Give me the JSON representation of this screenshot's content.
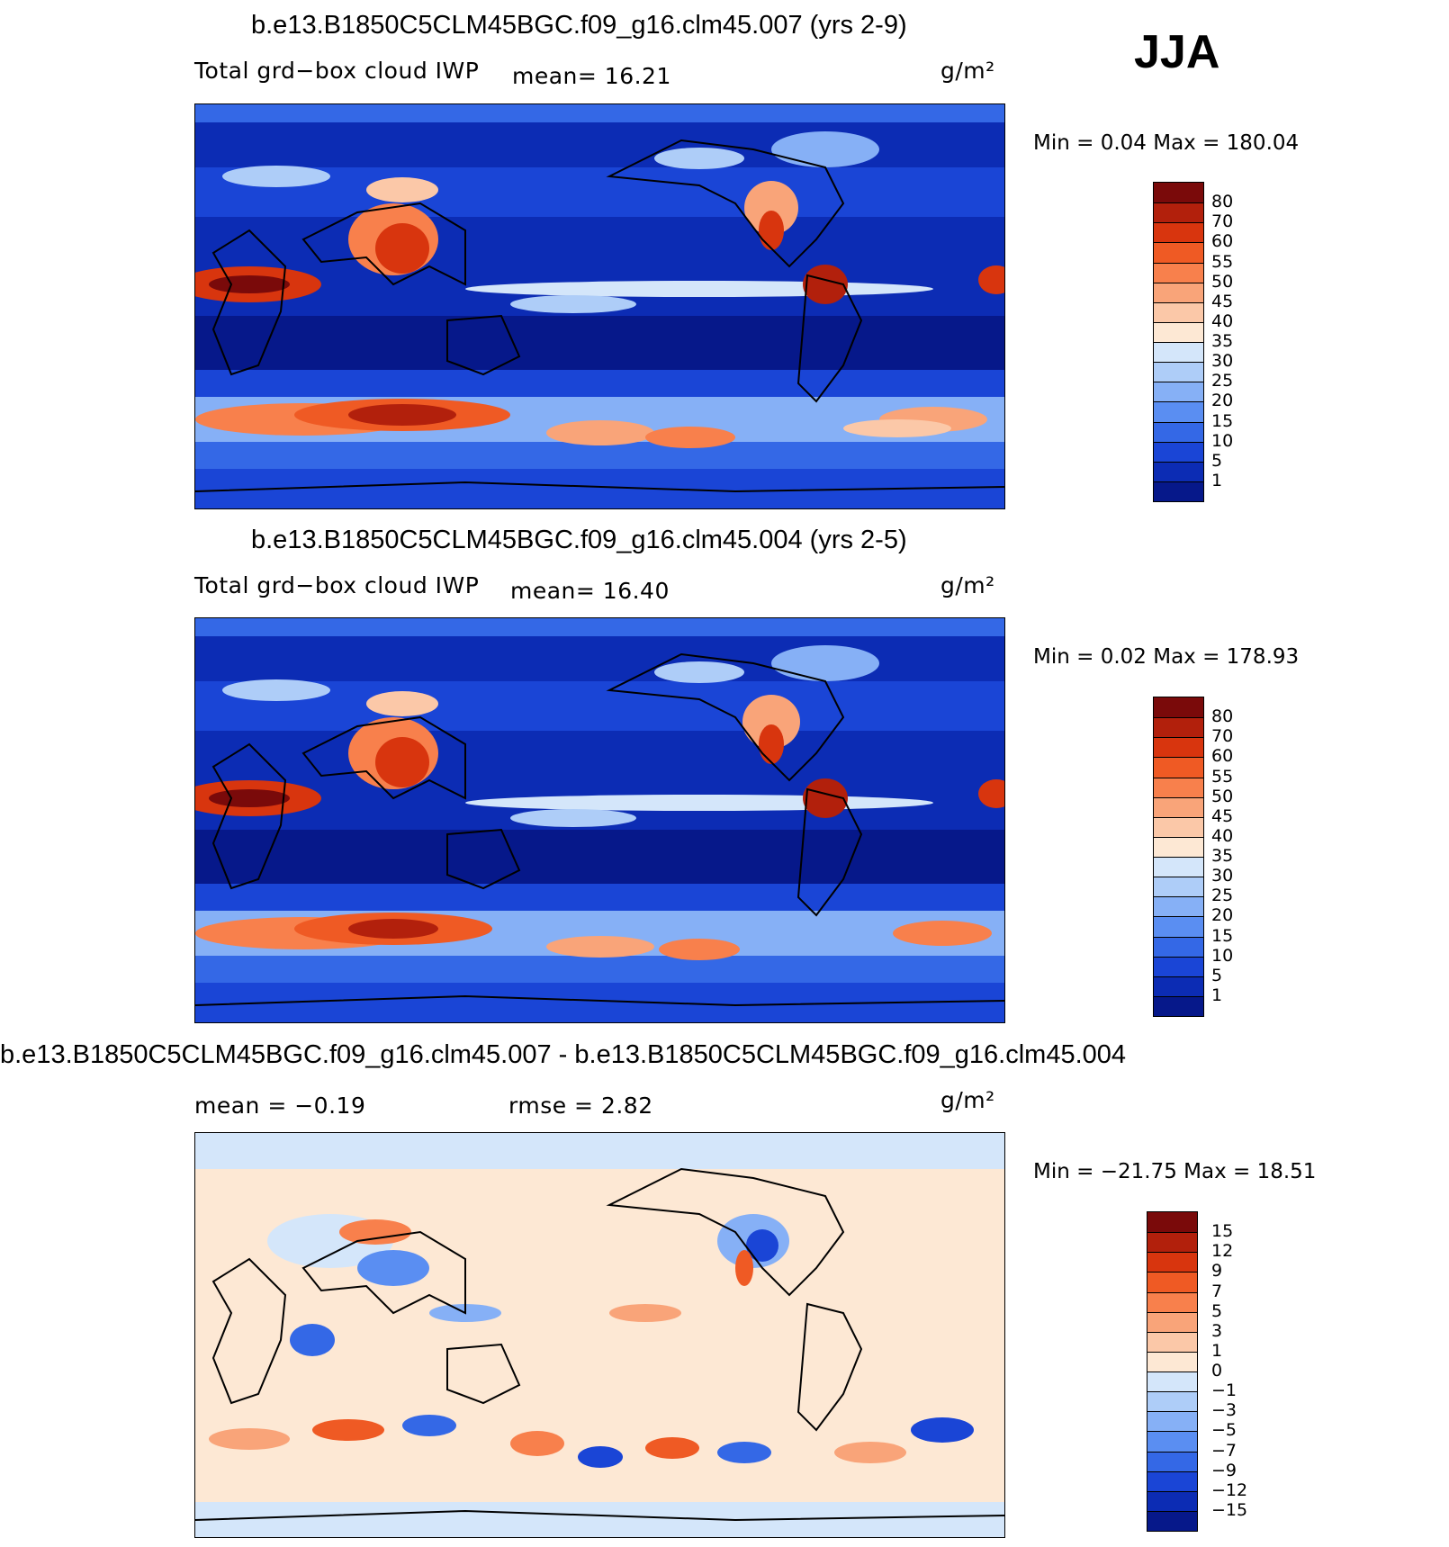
{
  "season": "JJA",
  "panels": [
    {
      "title": "b.e13.B1850C5CLM45BGC.f09_g16.clm45.007 (yrs 2-9)",
      "subtitle_left": "Total grd−box cloud IWP",
      "stat1": "mean=   16.21",
      "stat2": "",
      "units": "g/m²",
      "minmax": "Min  =     0.04  Max  =  180.04",
      "kind": "abs"
    },
    {
      "title": "b.e13.B1850C5CLM45BGC.f09_g16.clm45.004 (yrs 2-5)",
      "subtitle_left": "Total grd−box cloud IWP",
      "stat1": "mean=   16.40",
      "stat2": "",
      "units": "g/m²",
      "minmax": "Min  =     0.02  Max  =  178.93",
      "kind": "abs"
    },
    {
      "title": "b.e13.B1850C5CLM45BGC.f09_g16.clm45.007 - b.e13.B1850C5CLM45BGC.f09_g16.clm45.004",
      "subtitle_left": "mean  =    −0.19",
      "stat1": "",
      "stat2": "rmse  =     2.82",
      "units": "g/m²",
      "minmax": "Min  = −21.75  Max  =    18.51",
      "kind": "diff"
    }
  ],
  "colorbars": {
    "abs": {
      "labels": [
        "80",
        "70",
        "60",
        "55",
        "50",
        "45",
        "40",
        "35",
        "30",
        "25",
        "20",
        "15",
        "10",
        "5",
        "1"
      ],
      "colors": [
        "#7a0a0a",
        "#b2200c",
        "#d8350e",
        "#ef5a24",
        "#f8804c",
        "#f9a479",
        "#fbc8a8",
        "#fde8d4",
        "#d4e6fa",
        "#aecdf8",
        "#86b0f6",
        "#5a8ef2",
        "#3468e6",
        "#1a45d6",
        "#0c2cb4",
        "#06188a"
      ]
    },
    "diff": {
      "labels": [
        "15",
        "12",
        "9",
        "7",
        "5",
        "3",
        "1",
        "0",
        "−1",
        "−3",
        "−5",
        "−7",
        "−9",
        "−12",
        "−15"
      ],
      "colors": [
        "#7a0a0a",
        "#b2200c",
        "#d8350e",
        "#ef5a24",
        "#f8804c",
        "#f9a479",
        "#fbc8a8",
        "#fde8d4",
        "#d4e6fa",
        "#aecdf8",
        "#86b0f6",
        "#5a8ef2",
        "#3468e6",
        "#1a45d6",
        "#0c2cb4",
        "#06188a"
      ]
    }
  },
  "chart_data": [
    {
      "type": "heatmap",
      "title": "b.e13.B1850C5CLM45BGC.f09_g16.clm45.007 (yrs 2-9)",
      "variable": "Total grd−box cloud IWP",
      "units": "g/m2",
      "mean": 16.21,
      "min": 0.04,
      "max": 180.04,
      "levels": [
        1,
        5,
        10,
        15,
        20,
        25,
        30,
        35,
        40,
        45,
        50,
        55,
        60,
        70,
        80
      ]
    },
    {
      "type": "heatmap",
      "title": "b.e13.B1850C5CLM45BGC.f09_g16.clm45.004 (yrs 2-5)",
      "variable": "Total grd−box cloud IWP",
      "units": "g/m2",
      "mean": 16.4,
      "min": 0.02,
      "max": 178.93,
      "levels": [
        1,
        5,
        10,
        15,
        20,
        25,
        30,
        35,
        40,
        45,
        50,
        55,
        60,
        70,
        80
      ]
    },
    {
      "type": "heatmap",
      "title": "b.e13.B1850C5CLM45BGC.f09_g16.clm45.007 - b.e13.B1850C5CLM45BGC.f09_g16.clm45.004",
      "units": "g/m2",
      "mean": -0.19,
      "rmse": 2.82,
      "min": -21.75,
      "max": 18.51,
      "levels": [
        -15,
        -12,
        -9,
        -7,
        -5,
        -3,
        -1,
        0,
        1,
        3,
        5,
        7,
        9,
        12,
        15
      ]
    }
  ]
}
